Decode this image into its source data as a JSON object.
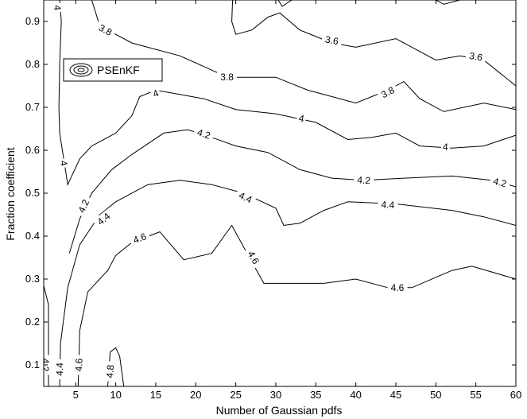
{
  "chart_data": {
    "type": "contour",
    "xlabel": "Number of Gaussian pdfs",
    "ylabel": "Fraction coefficient",
    "xlim": [
      1,
      60
    ],
    "ylim": [
      0.05,
      0.95
    ],
    "xticks": [
      5,
      10,
      15,
      20,
      25,
      30,
      35,
      40,
      45,
      50,
      55,
      60
    ],
    "yticks": [
      0.1,
      0.2,
      0.3,
      0.4,
      0.5,
      0.6,
      0.7,
      0.8,
      0.9
    ],
    "legend": {
      "label": "PSEnKF",
      "position": "top-left"
    },
    "contours": [
      {
        "level": "3.6",
        "points": [
          [
            24.6,
            0.95
          ],
          [
            24.5,
            0.9
          ],
          [
            25.0,
            0.87
          ],
          [
            27.0,
            0.88
          ],
          [
            29.0,
            0.91
          ],
          [
            30.5,
            0.92
          ],
          [
            33.0,
            0.88
          ],
          [
            37.0,
            0.85
          ],
          [
            40.0,
            0.84
          ],
          [
            45.0,
            0.86
          ],
          [
            50.0,
            0.81
          ],
          [
            53.0,
            0.82
          ],
          [
            56.0,
            0.81
          ],
          [
            58.0,
            0.78
          ],
          [
            60.0,
            0.75
          ]
        ],
        "labels": [
          [
            37.0,
            0.856
          ],
          [
            55.0,
            0.818
          ]
        ]
      },
      {
        "level": "3.6",
        "points": [
          [
            30.3,
            0.95
          ],
          [
            30.8,
            0.935
          ],
          [
            32.0,
            0.95
          ]
        ],
        "labels": []
      },
      {
        "level": "3.6",
        "points": [
          [
            50.0,
            0.95
          ],
          [
            51.0,
            0.94
          ],
          [
            53.0,
            0.95
          ]
        ],
        "labels": []
      },
      {
        "level": "3.8",
        "points": [
          [
            7.0,
            0.95
          ],
          [
            8.0,
            0.89
          ],
          [
            12.0,
            0.85
          ],
          [
            18.0,
            0.82
          ],
          [
            24.0,
            0.77
          ],
          [
            30.0,
            0.77
          ],
          [
            34.0,
            0.74
          ],
          [
            40.0,
            0.71
          ],
          [
            44.0,
            0.74
          ],
          [
            46.0,
            0.76
          ],
          [
            48.0,
            0.72
          ],
          [
            51.0,
            0.69
          ],
          [
            56.0,
            0.71
          ],
          [
            60.0,
            0.695
          ]
        ],
        "labels": [
          [
            8.7,
            0.88
          ],
          [
            23.9,
            0.77
          ],
          [
            44.0,
            0.735
          ]
        ]
      },
      {
        "level": "4",
        "points": [
          [
            3.0,
            0.95
          ],
          [
            3.2,
            0.9
          ],
          [
            3.0,
            0.8
          ],
          [
            2.9,
            0.7
          ],
          [
            3.0,
            0.64
          ],
          [
            4.0,
            0.52
          ],
          [
            5.5,
            0.58
          ],
          [
            7.0,
            0.61
          ],
          [
            10.0,
            0.64
          ],
          [
            12.0,
            0.68
          ],
          [
            13.0,
            0.725
          ],
          [
            15.0,
            0.74
          ],
          [
            18.0,
            0.73
          ],
          [
            21.0,
            0.72
          ],
          [
            25.0,
            0.695
          ],
          [
            30.0,
            0.685
          ],
          [
            35.0,
            0.665
          ],
          [
            39.0,
            0.625
          ],
          [
            42.0,
            0.63
          ],
          [
            45.0,
            0.64
          ],
          [
            48.0,
            0.61
          ],
          [
            52.0,
            0.605
          ],
          [
            56.0,
            0.61
          ],
          [
            60.0,
            0.635
          ]
        ],
        "labels": [
          [
            2.7,
            0.932
          ],
          [
            3.5,
            0.57
          ],
          [
            15.0,
            0.732
          ],
          [
            33.2,
            0.674
          ],
          [
            51.2,
            0.608
          ]
        ]
      },
      {
        "level": "4.2",
        "points": [
          [
            1.0,
            0.285
          ],
          [
            1.6,
            0.24
          ],
          [
            1.6,
            0.05
          ]
        ],
        "labels": [
          [
            1.2,
            0.1
          ]
        ]
      },
      {
        "level": "4.2",
        "points": [
          [
            4.2,
            0.36
          ],
          [
            5.5,
            0.44
          ],
          [
            7.0,
            0.5
          ],
          [
            9.5,
            0.555
          ],
          [
            12.0,
            0.59
          ],
          [
            16.0,
            0.64
          ],
          [
            19.0,
            0.648
          ],
          [
            22.0,
            0.63
          ],
          [
            25.0,
            0.61
          ],
          [
            29.0,
            0.595
          ],
          [
            33.0,
            0.555
          ],
          [
            37.0,
            0.535
          ],
          [
            41.0,
            0.53
          ],
          [
            46.0,
            0.535
          ],
          [
            52.0,
            0.54
          ],
          [
            57.0,
            0.53
          ],
          [
            60.0,
            0.515
          ]
        ],
        "labels": [
          [
            6.0,
            0.47
          ],
          [
            21.0,
            0.638
          ],
          [
            41.0,
            0.53
          ],
          [
            58.0,
            0.525
          ]
        ]
      },
      {
        "level": "4.4",
        "points": [
          [
            3.0,
            0.05
          ],
          [
            3.1,
            0.15
          ],
          [
            4.0,
            0.28
          ],
          [
            5.5,
            0.38
          ],
          [
            8.0,
            0.45
          ],
          [
            10.0,
            0.48
          ],
          [
            14.0,
            0.52
          ],
          [
            18.0,
            0.53
          ],
          [
            22.0,
            0.52
          ],
          [
            26.0,
            0.5
          ],
          [
            30.0,
            0.465
          ],
          [
            31.0,
            0.425
          ],
          [
            33.0,
            0.43
          ],
          [
            36.0,
            0.46
          ],
          [
            39.0,
            0.48
          ],
          [
            45.0,
            0.475
          ],
          [
            52.0,
            0.46
          ],
          [
            56.0,
            0.445
          ],
          [
            60.0,
            0.425
          ]
        ],
        "labels": [
          [
            3.0,
            0.09
          ],
          [
            8.5,
            0.44
          ],
          [
            26.2,
            0.49
          ],
          [
            44.0,
            0.473
          ]
        ]
      },
      {
        "level": "4.6",
        "points": [
          [
            5.3,
            0.05
          ],
          [
            5.5,
            0.18
          ],
          [
            6.5,
            0.27
          ],
          [
            9.0,
            0.32
          ],
          [
            10.0,
            0.355
          ],
          [
            12.0,
            0.385
          ],
          [
            15.5,
            0.41
          ],
          [
            18.5,
            0.345
          ],
          [
            22.0,
            0.36
          ],
          [
            24.5,
            0.425
          ],
          [
            27.0,
            0.34
          ],
          [
            28.5,
            0.29
          ],
          [
            33.0,
            0.29
          ],
          [
            36.0,
            0.29
          ],
          [
            40.0,
            0.3
          ],
          [
            44.0,
            0.28
          ],
          [
            47.0,
            0.28
          ],
          [
            52.0,
            0.32
          ],
          [
            54.5,
            0.33
          ],
          [
            60.0,
            0.3
          ]
        ],
        "labels": [
          [
            5.4,
            0.1
          ],
          [
            13.0,
            0.395
          ],
          [
            27.2,
            0.35
          ],
          [
            45.2,
            0.28
          ]
        ]
      },
      {
        "level": "4.8",
        "points": [
          [
            9.0,
            0.05
          ],
          [
            9.3,
            0.13
          ],
          [
            10.0,
            0.14
          ],
          [
            10.5,
            0.12
          ],
          [
            11.0,
            0.05
          ]
        ],
        "labels": [
          [
            9.3,
            0.085
          ]
        ]
      }
    ]
  }
}
